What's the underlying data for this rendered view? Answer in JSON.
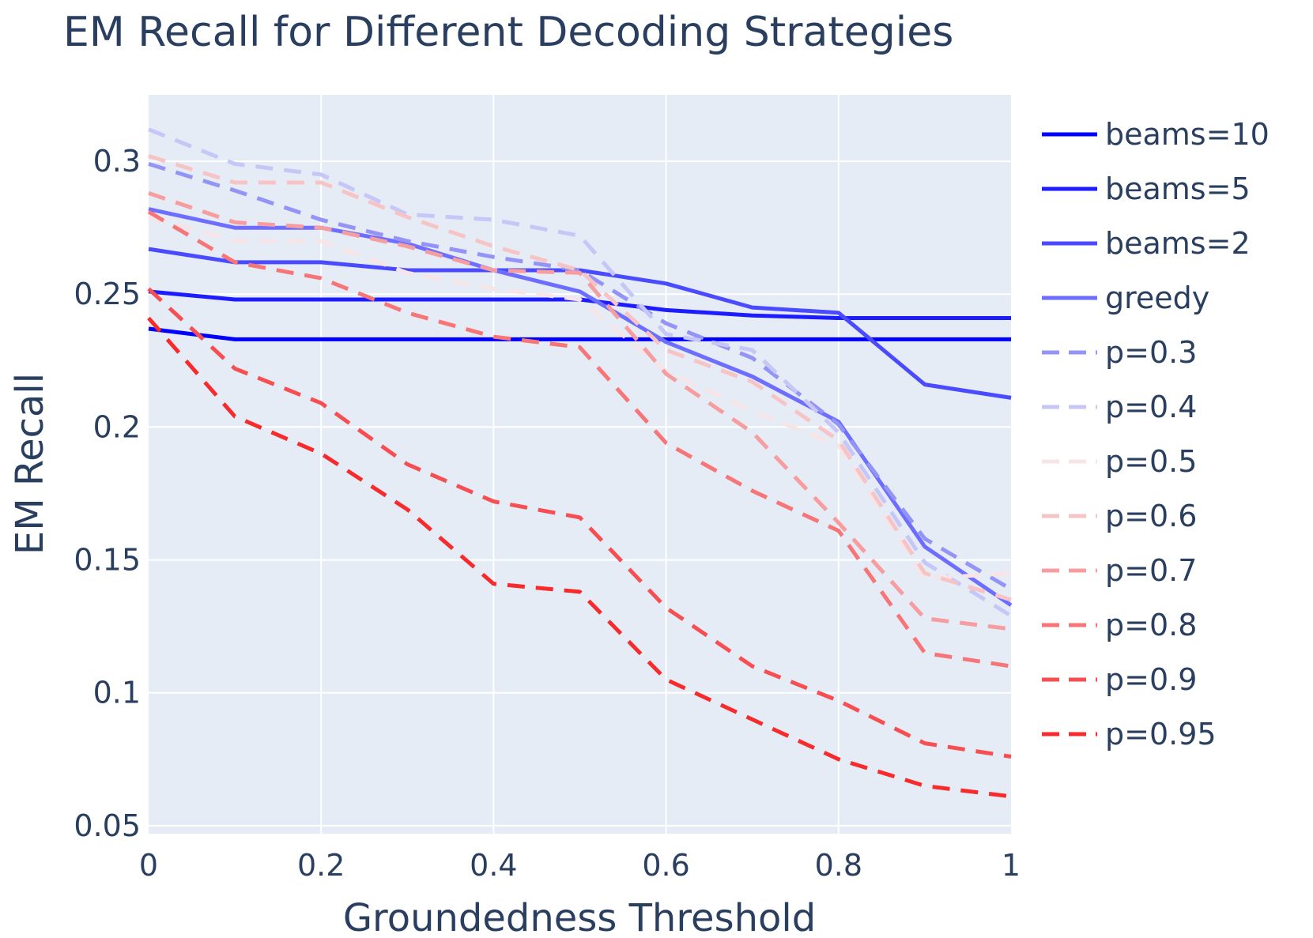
{
  "chart_data": {
    "type": "line",
    "title": "EM Recall for Different Decoding Strategies",
    "xlabel": "Groundedness Threshold",
    "ylabel": "EM Recall",
    "xlim": [
      0,
      1
    ],
    "ylim": [
      0.047,
      0.325
    ],
    "x_ticks": [
      0,
      0.2,
      0.4,
      0.6,
      0.8,
      1
    ],
    "x_tick_labels": [
      "0",
      "0.2",
      "0.4",
      "0.6",
      "0.8",
      "1"
    ],
    "y_ticks": [
      0.05,
      0.1,
      0.15,
      0.2,
      0.25,
      0.3
    ],
    "y_tick_labels": [
      "0.05",
      "0.1",
      "0.15",
      "0.2",
      "0.25",
      "0.3"
    ],
    "grid": true,
    "legend_position": "right",
    "background": "#e5ecf6",
    "x": [
      0,
      0.1,
      0.2,
      0.3,
      0.4,
      0.5,
      0.6,
      0.7,
      0.8,
      0.9,
      1
    ],
    "series": [
      {
        "name": "beams=10",
        "color": "#0000ff",
        "dash": "solid",
        "values": [
          0.237,
          0.233,
          0.233,
          0.233,
          0.233,
          0.233,
          0.233,
          0.233,
          0.233,
          0.233,
          0.233
        ]
      },
      {
        "name": "beams=5",
        "color": "#1c1cff",
        "dash": "solid",
        "values": [
          0.251,
          0.248,
          0.248,
          0.248,
          0.248,
          0.248,
          0.244,
          0.242,
          0.241,
          0.241,
          0.241
        ]
      },
      {
        "name": "beams=2",
        "color": "#4a4aff",
        "dash": "solid",
        "values": [
          0.267,
          0.262,
          0.262,
          0.259,
          0.259,
          0.259,
          0.254,
          0.245,
          0.243,
          0.216,
          0.211
        ]
      },
      {
        "name": "greedy",
        "color": "#6d6dff",
        "dash": "solid",
        "values": [
          0.282,
          0.275,
          0.275,
          0.269,
          0.259,
          0.251,
          0.232,
          0.219,
          0.202,
          0.155,
          0.133
        ]
      },
      {
        "name": "p=0.3",
        "color": "#9494f7",
        "dash": "dash",
        "values": [
          0.299,
          0.289,
          0.278,
          0.27,
          0.264,
          0.259,
          0.239,
          0.226,
          0.201,
          0.158,
          0.139
        ]
      },
      {
        "name": "p=0.4",
        "color": "#c6c6f7",
        "dash": "dash",
        "values": [
          0.312,
          0.299,
          0.295,
          0.28,
          0.278,
          0.272,
          0.235,
          0.229,
          0.198,
          0.149,
          0.129
        ]
      },
      {
        "name": "p=0.5",
        "color": "#f7e4e6",
        "dash": "dash",
        "values": [
          0.279,
          0.27,
          0.27,
          0.258,
          0.252,
          0.248,
          0.221,
          0.206,
          0.193,
          0.143,
          0.145
        ]
      },
      {
        "name": "p=0.6",
        "color": "#f7c4c6",
        "dash": "dash",
        "values": [
          0.302,
          0.292,
          0.292,
          0.279,
          0.268,
          0.259,
          0.229,
          0.217,
          0.195,
          0.145,
          0.135
        ]
      },
      {
        "name": "p=0.7",
        "color": "#f79d9f",
        "dash": "dash",
        "values": [
          0.288,
          0.277,
          0.275,
          0.268,
          0.259,
          0.258,
          0.22,
          0.198,
          0.164,
          0.128,
          0.124
        ]
      },
      {
        "name": "p=0.8",
        "color": "#f77577",
        "dash": "dash",
        "values": [
          0.281,
          0.262,
          0.256,
          0.243,
          0.234,
          0.23,
          0.194,
          0.176,
          0.161,
          0.115,
          0.11
        ]
      },
      {
        "name": "p=0.9",
        "color": "#f74f51",
        "dash": "dash",
        "values": [
          0.252,
          0.222,
          0.209,
          0.186,
          0.172,
          0.166,
          0.132,
          0.11,
          0.097,
          0.081,
          0.076
        ]
      },
      {
        "name": "p=0.95",
        "color": "#f72a2c",
        "dash": "dash",
        "values": [
          0.241,
          0.204,
          0.19,
          0.169,
          0.141,
          0.138,
          0.105,
          0.09,
          0.075,
          0.065,
          0.061
        ]
      }
    ]
  }
}
